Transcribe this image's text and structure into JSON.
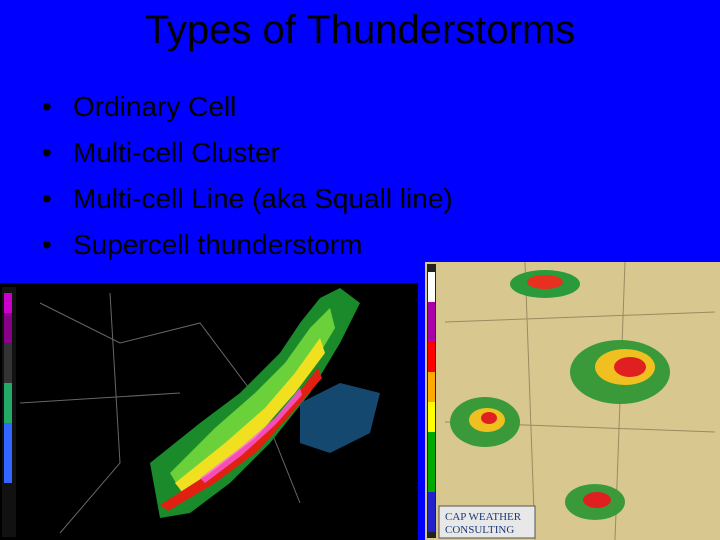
{
  "title": "Types of Thunderstorms",
  "bullets": [
    "Ordinary Cell",
    "Multi-cell Cluster",
    "Multi-cell Line (aka Squall line)",
    "Supercell thunderstorm"
  ],
  "logo": {
    "line1": "CAP WEATHER",
    "line2": "CONSULTING"
  }
}
